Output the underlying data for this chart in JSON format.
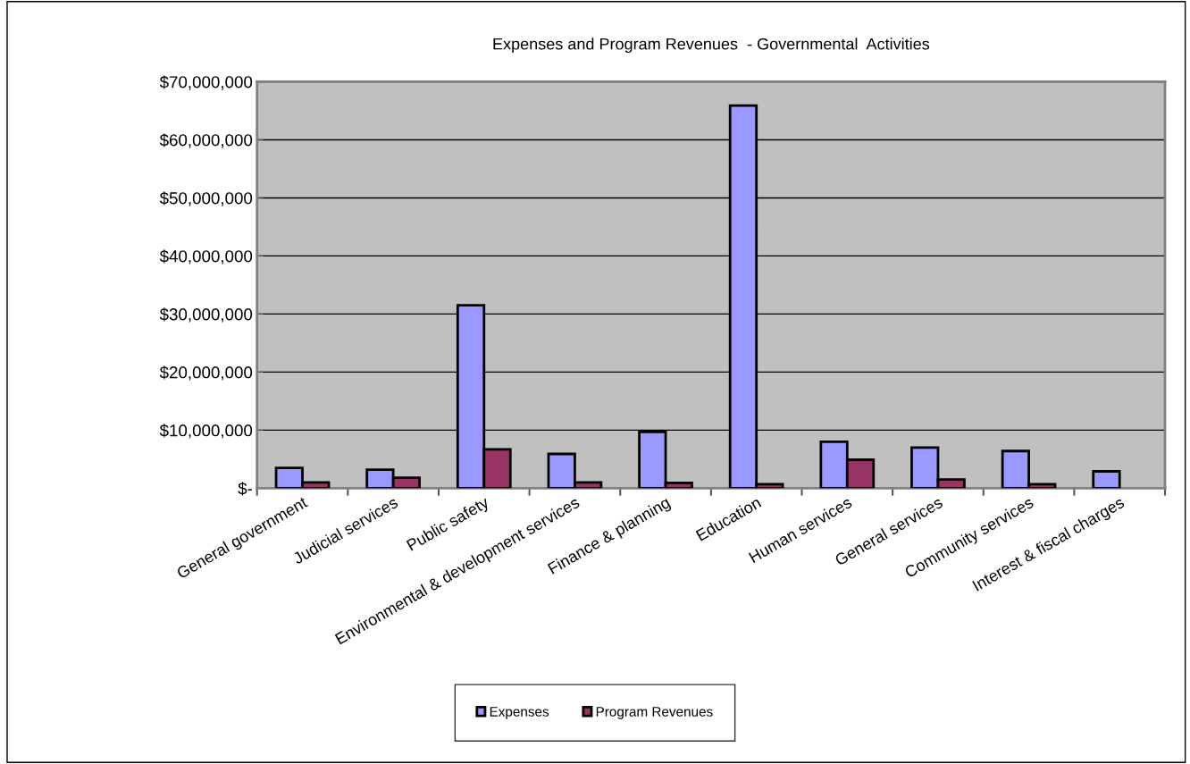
{
  "chart_data": {
    "type": "bar",
    "title": "Expenses and Program Revenues  - Governmental  Activities",
    "categories": [
      "General government",
      "Judicial services",
      "Public safety",
      "Environmental & development services",
      "Finance & planning",
      "Education",
      "Human services",
      "General services",
      "Community services",
      "Interest & fiscal charges"
    ],
    "series": [
      {
        "name": "Expenses",
        "color": "#9999ff",
        "values": [
          3500000,
          3200000,
          31500000,
          5900000,
          9700000,
          65900000,
          8000000,
          7000000,
          6400000,
          2900000
        ]
      },
      {
        "name": "Program Revenues",
        "color": "#993366",
        "values": [
          1000000,
          1800000,
          6700000,
          1000000,
          900000,
          700000,
          4900000,
          1500000,
          700000,
          null
        ]
      }
    ],
    "ylim": [
      0,
      70000000
    ],
    "yticks": [
      {
        "value": 0,
        "label": "$-"
      },
      {
        "value": 10000000,
        "label": "$10,000,000"
      },
      {
        "value": 20000000,
        "label": "$20,000,000"
      },
      {
        "value": 30000000,
        "label": "$30,000,000"
      },
      {
        "value": 40000000,
        "label": "$40,000,000"
      },
      {
        "value": 50000000,
        "label": "$50,000,000"
      },
      {
        "value": 60000000,
        "label": "$60,000,000"
      },
      {
        "value": 70000000,
        "label": "$70,000,000"
      }
    ],
    "grid": "y",
    "legend": "bottom"
  }
}
